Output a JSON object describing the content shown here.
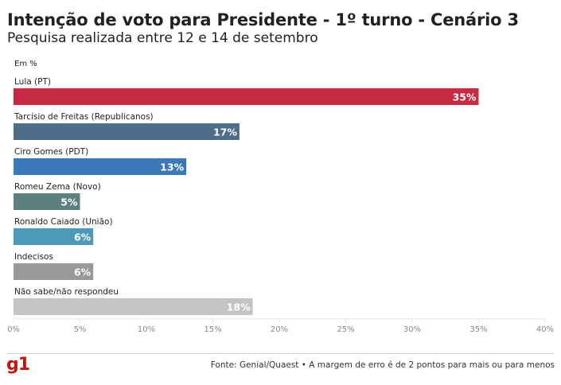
{
  "header": {
    "title": "Intenção de voto para Presidente - 1º turno - Cenário 3",
    "subtitle": "Pesquisa realizada entre 12 e 14 de setembro",
    "unit_label": "Em %"
  },
  "footer": {
    "logo": "g1",
    "source": "Fonte: Genial/Quaest • A margem de erro é de 2 pontos para mais ou para menos"
  },
  "colors": {
    "brand": "#c4170c",
    "axis": "#e6e6e6",
    "tick_text": "#888888"
  },
  "chart_data": {
    "type": "bar",
    "orientation": "horizontal",
    "title": "Intenção de voto para Presidente - 1º turno - Cenário 3",
    "subtitle": "Pesquisa realizada entre 12 e 14 de setembro",
    "xlabel": "",
    "ylabel": "Em %",
    "xlim": [
      0,
      40
    ],
    "grid": false,
    "categories": [
      "Lula (PT)",
      "Tarcísio de Freitas (Republicanos)",
      "Ciro Gomes (PDT)",
      "Romeu Zema (Novo)",
      "Ronaldo Caiado (União)",
      "Indecisos",
      "Não sabe/não respondeu"
    ],
    "values": [
      35,
      17,
      13,
      5,
      6,
      6,
      18
    ],
    "value_labels": [
      "35%",
      "17%",
      "13%",
      "5%",
      "6%",
      "6%",
      "18%"
    ],
    "bar_colors": [
      "#c72a43",
      "#4e6d89",
      "#3b78b8",
      "#5b807d",
      "#4a9ab8",
      "#999999",
      "#c4c4c4"
    ],
    "x_ticks": [
      0,
      5,
      10,
      15,
      20,
      25,
      30,
      35,
      40
    ],
    "x_tick_labels": [
      "0%",
      "5%",
      "10%",
      "15%",
      "20%",
      "25%",
      "30%",
      "35%",
      "40%"
    ]
  }
}
